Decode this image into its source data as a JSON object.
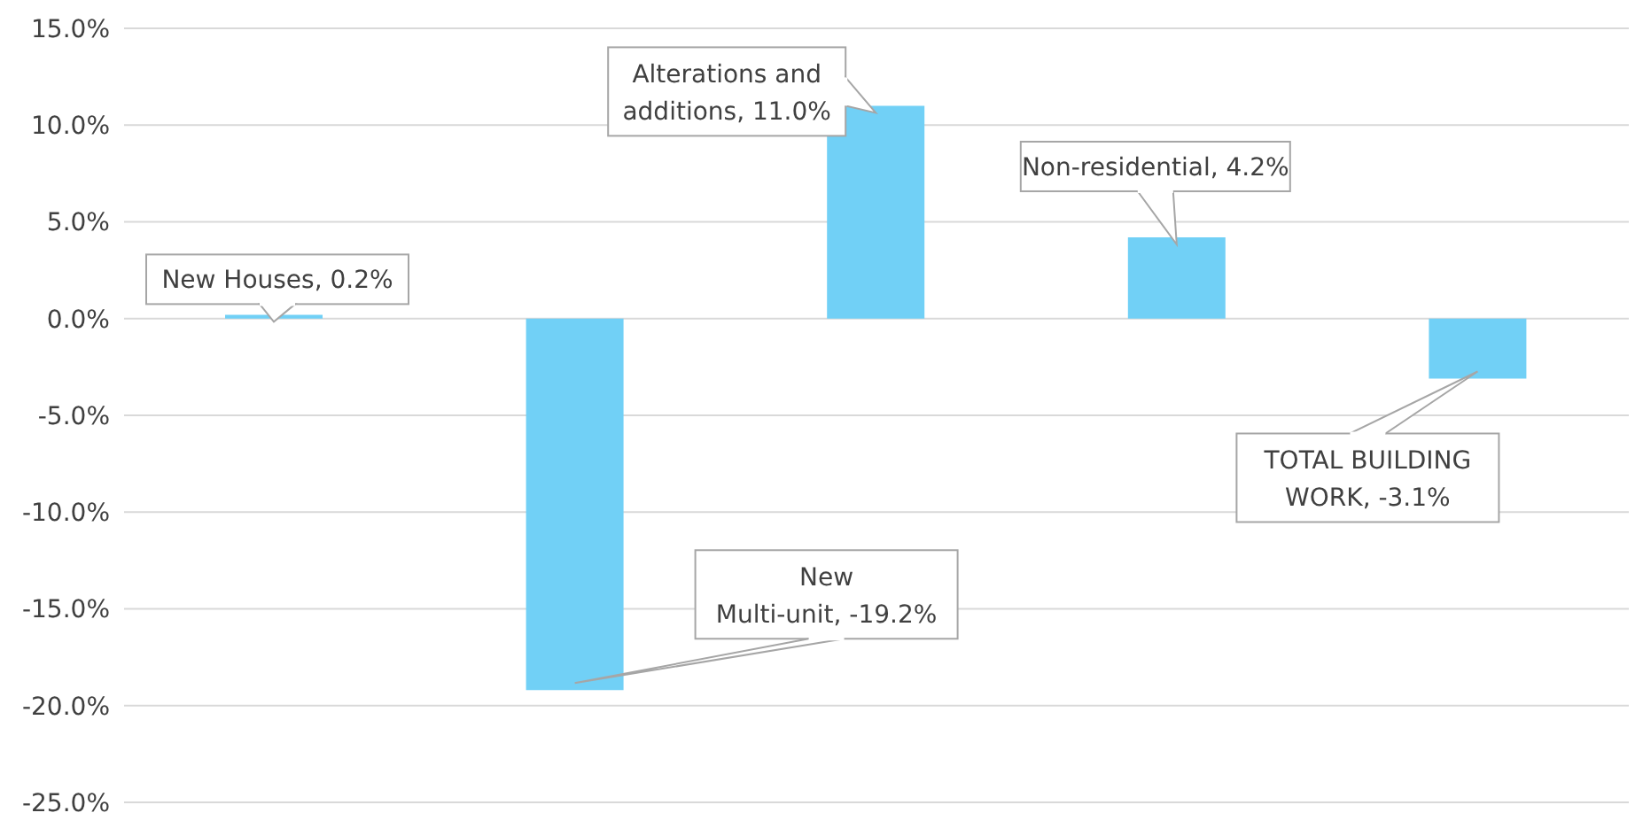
{
  "chart_data": {
    "type": "bar",
    "categories": [
      null,
      null,
      null,
      null,
      null
    ],
    "values": [
      0.2,
      -19.2,
      11.0,
      4.2,
      -3.1
    ],
    "value_labels": [
      "New Houses, 0.2%",
      "New Multi-unit, -19.2%",
      "Alterations and additions, 11.0%",
      "Non-residential, 4.2%",
      "TOTAL BUILDING WORK, -3.1%"
    ],
    "color": "#71d0f6",
    "ylim": [
      -25,
      15
    ],
    "yticks": [
      {
        "value": -25,
        "label": "-25.0%"
      },
      {
        "value": -20,
        "label": "-20.0%"
      },
      {
        "value": -15,
        "label": "-15.0%"
      },
      {
        "value": -10,
        "label": "-10.0%"
      },
      {
        "value": -5,
        "label": "-5.0%"
      },
      {
        "value": 0,
        "label": "0.0%"
      },
      {
        "value": 5,
        "label": "5.0%"
      },
      {
        "value": 10,
        "label": "10.0%"
      },
      {
        "value": 15,
        "label": "15.0%"
      }
    ],
    "grid": "y"
  }
}
